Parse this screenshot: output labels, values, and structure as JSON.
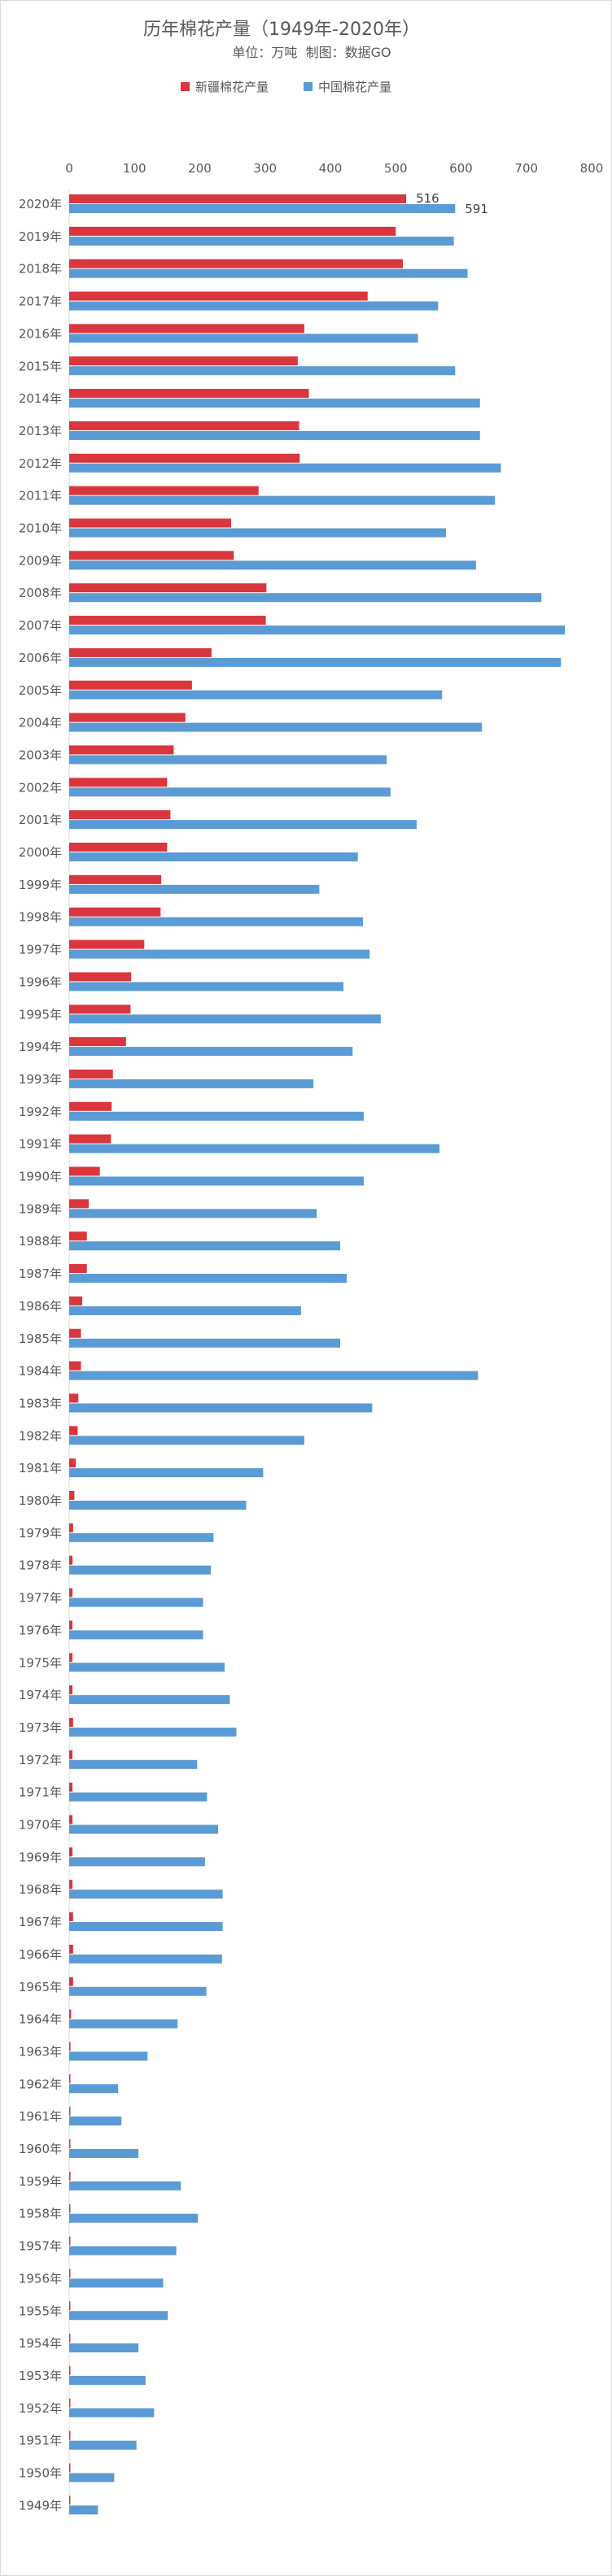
{
  "chart_data": {
    "type": "bar",
    "orientation": "horizontal",
    "title": "历年棉花产量（1949年-2020年）",
    "subtitle": "单位：万吨  制图：数据GO",
    "xlim": [
      0,
      800
    ],
    "xticks": [
      0,
      100,
      200,
      300,
      400,
      500,
      600,
      700,
      800
    ],
    "grid": false,
    "legend_position": "top",
    "categories": [
      "2020年",
      "2019年",
      "2018年",
      "2017年",
      "2016年",
      "2015年",
      "2014年",
      "2013年",
      "2012年",
      "2011年",
      "2010年",
      "2009年",
      "2008年",
      "2007年",
      "2006年",
      "2005年",
      "2004年",
      "2003年",
      "2002年",
      "2001年",
      "2000年",
      "1999年",
      "1998年",
      "1997年",
      "1996年",
      "1995年",
      "1994年",
      "1993年",
      "1992年",
      "1991年",
      "1990年",
      "1989年",
      "1988年",
      "1987年",
      "1986年",
      "1985年",
      "1984年",
      "1983年",
      "1982年",
      "1981年",
      "1980年",
      "1979年",
      "1978年",
      "1977年",
      "1976年",
      "1975年",
      "1974年",
      "1973年",
      "1972年",
      "1971年",
      "1970年",
      "1969年",
      "1968年",
      "1967年",
      "1966年",
      "1965年",
      "1964年",
      "1963年",
      "1962年",
      "1961年",
      "1960年",
      "1959年",
      "1958年",
      "1957年",
      "1956年",
      "1955年",
      "1954年",
      "1953年",
      "1952年",
      "1951年",
      "1950年",
      "1949年"
    ],
    "series": [
      {
        "name": "新疆棉花产量",
        "color": "#d9363e",
        "values": [
          516,
          500,
          511,
          457,
          360,
          350,
          367,
          352,
          353,
          290,
          248,
          252,
          302,
          301,
          218,
          188,
          178,
          160,
          150,
          155,
          150,
          141,
          140,
          115,
          95,
          94,
          87,
          67,
          65,
          64,
          47,
          30,
          27,
          27,
          20,
          18,
          18,
          14,
          13,
          10,
          8,
          6,
          5,
          5,
          5,
          5,
          5,
          6,
          5,
          5,
          5,
          5,
          5,
          6,
          6,
          6,
          3,
          2,
          1,
          1,
          1,
          2,
          1,
          1,
          1,
          1,
          1,
          1,
          1,
          1,
          1,
          0.5
        ],
        "data_labels": {
          "0": "516"
        }
      },
      {
        "name": "中国棉花产量",
        "color": "#5b9bd5",
        "values": [
          591,
          589,
          610,
          565,
          534,
          591,
          629,
          629,
          661,
          652,
          577,
          623,
          723,
          759,
          753,
          571,
          632,
          486,
          492,
          532,
          442,
          383,
          450,
          460,
          420,
          477,
          434,
          374,
          451,
          567,
          451,
          379,
          415,
          425,
          355,
          415,
          626,
          464,
          360,
          297,
          271,
          221,
          217,
          205,
          205,
          238,
          246,
          256,
          196,
          211,
          228,
          208,
          235,
          235,
          234,
          210,
          166,
          120,
          75,
          80,
          106,
          171,
          197,
          164,
          144,
          151,
          106,
          117,
          130,
          103,
          69,
          44
        ],
        "data_labels": {
          "0": "591"
        }
      }
    ]
  }
}
